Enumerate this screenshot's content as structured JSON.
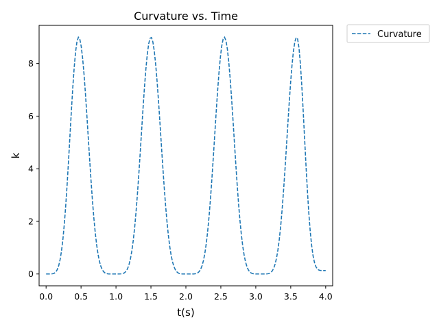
{
  "chart_data": {
    "type": "line",
    "title": "Curvature vs. Time",
    "xlabel": "t(s)",
    "ylabel": "k",
    "xlim": [
      -0.1,
      4.1
    ],
    "ylim": [
      -0.45,
      9.45
    ],
    "xticks": [
      0.0,
      0.5,
      1.0,
      1.5,
      2.0,
      2.5,
      3.0,
      3.5,
      4.0
    ],
    "xtick_labels": [
      "0.0",
      "0.5",
      "1.0",
      "1.5",
      "2.0",
      "2.5",
      "3.0",
      "3.5",
      "4.0"
    ],
    "yticks": [
      0,
      2,
      4,
      6,
      8
    ],
    "ytick_labels": [
      "0",
      "2",
      "4",
      "6",
      "8"
    ],
    "grid": false,
    "legend": {
      "placement": "outside-top-right",
      "entries": [
        "Curvature"
      ]
    },
    "series": [
      {
        "name": "Curvature",
        "color": "#1f77b4",
        "style": "dashed",
        "x_range": [
          0.0,
          4.0
        ],
        "num_points": 200,
        "peaks_x": [
          0.465,
          1.5,
          2.55,
          3.585
        ],
        "minima_x": [
          0.0,
          0.98,
          2.03,
          3.07
        ],
        "peak_value": 9.0,
        "min_value": 0.0,
        "end_value": 0.13
      }
    ]
  }
}
